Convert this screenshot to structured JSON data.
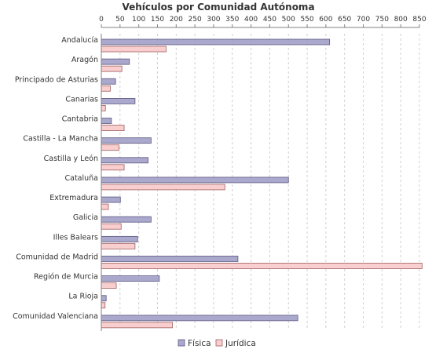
{
  "chart_data": {
    "type": "bar",
    "orientation": "horizontal",
    "title": "Vehículos por Comunidad Autónoma",
    "xlabel": "",
    "ylabel": "",
    "xlim": [
      0,
      850
    ],
    "xticks": [
      0,
      50,
      100,
      150,
      200,
      250,
      300,
      350,
      400,
      450,
      500,
      550,
      600,
      650,
      700,
      750,
      800,
      850
    ],
    "x_axis_position": "top",
    "grid": true,
    "legend_position": "bottom-center",
    "categories": [
      "Andalucía",
      "Aragón",
      "Principado de Asturias",
      "Canarias",
      "Cantabria",
      "Castilla - La Mancha",
      "Castilla y León",
      "Cataluña",
      "Extremadura",
      "Galicia",
      "Illes Balears",
      "Comunidad de Madrid",
      "Región de Murcia",
      "La Rioja",
      "Comunidad Valenciana"
    ],
    "series": [
      {
        "name": "Física",
        "color": "#aaa8cc",
        "stroke": "#5a5880",
        "values": [
          610,
          75,
          38,
          90,
          27,
          133,
          125,
          500,
          51,
          133,
          97,
          365,
          155,
          13,
          525
        ]
      },
      {
        "name": "Jurídica",
        "color": "#f8cece",
        "stroke": "#a06060",
        "values": [
          173,
          55,
          24,
          11,
          61,
          47,
          61,
          330,
          19,
          53,
          90,
          857,
          40,
          10,
          190
        ]
      }
    ]
  }
}
